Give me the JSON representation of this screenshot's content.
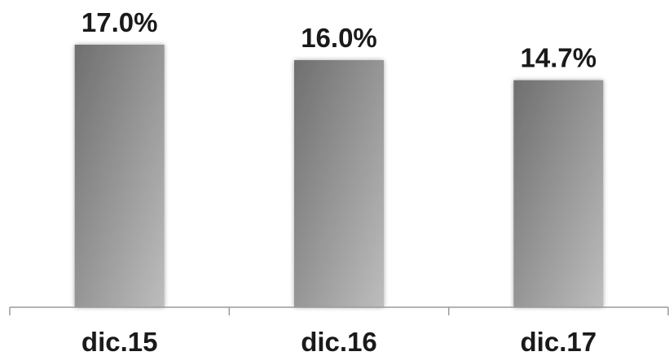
{
  "chart_data": {
    "type": "bar",
    "title": "",
    "xlabel": "",
    "ylabel": "",
    "categories": [
      "dic.15",
      "dic.16",
      "dic.17"
    ],
    "values": [
      17.0,
      16.0,
      14.7
    ],
    "data_labels": [
      "17.0%",
      "16.0%",
      "14.7%"
    ],
    "unit": "%",
    "grid": false,
    "legend": "none",
    "bar_gradient": [
      "#6f6f6f",
      "#bdbdbd"
    ],
    "axis_color": "#9a9a9a",
    "text_color": "#1a1a1a"
  }
}
